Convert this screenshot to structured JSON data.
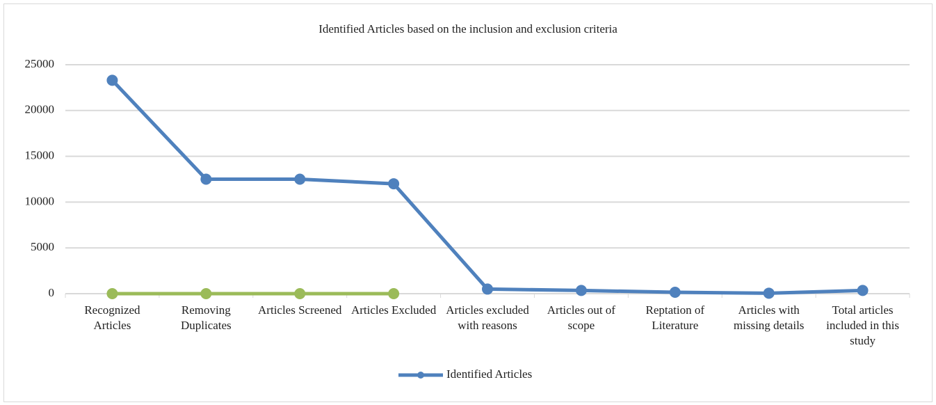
{
  "chart_data": {
    "type": "line",
    "title": "Identified Articles based on the inclusion and exclusion criteria",
    "categories": [
      "Recognized Articles",
      "Removing Duplicates",
      "Articles Screened",
      "Articles Excluded",
      "Articles excluded with reasons",
      "Articles out of scope",
      "Reptation of Literature",
      "Articles with missing details",
      "Total articles included in this study"
    ],
    "series": [
      {
        "name": "Identified Articles",
        "color": "#4f81bd",
        "values": [
          23300,
          12500,
          12500,
          12000,
          500,
          350,
          150,
          50,
          350
        ]
      },
      {
        "color": "#9bbb59",
        "values": [
          0,
          0,
          0,
          0,
          null,
          null,
          null,
          null,
          null
        ]
      }
    ],
    "ylim": [
      0,
      25000
    ],
    "yticks": [
      0,
      5000,
      10000,
      15000,
      20000,
      25000
    ],
    "grid": true,
    "legend": "bottom"
  }
}
